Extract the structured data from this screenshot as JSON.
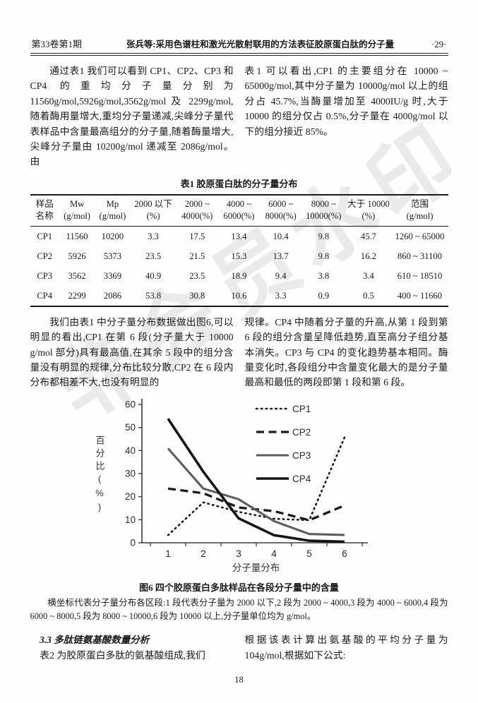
{
  "header": {
    "issue": "第33卷第1期",
    "running_title": "张兵等:采用色谱柱和激光光散射联用的方法表征胶原蛋白肽的分子量",
    "page_marker": "·29·"
  },
  "watermark": "非会员水印",
  "paragraphs": {
    "p1_left": "通过表1 我们可以看到 CP1、CP2、CP3 和 CP4 的重均分子量分别为 11560g/mol,5926g/mol,3562g/mol 及 2299g/mol,随着酶用量增大,重均分子量递减,尖峰分子量代表样品中含量最高组分的分子量,随着酶量增大,尖峰分子量由 10200g/mol 递减至 2086g/mol。由",
    "p1_right": "表1 可以看出,CP1 的主要组分在 10000 ~ 65000g/mol,其中分子量为 10000g/mol 以上的组分占 45.7%,当酶量增加至 4000IU/g 时,大于 10000 的组分仅占 0.5%,分子量在 4000g/mol 以下的组分接近 85%。",
    "p2_left": "我们由表1 中分子量分布数据做出图6,可以明显的看出,CP1 在第 6 段(分子量大于 10000 g/mol 部分)具有最高值,在其余 5 段中的组分含量没有明显的规律,分布比较分散,CP2 在 6 段内分布都相差不大,也没有明显的",
    "p2_right": "规律。CP4 中随着分子量的升高,从第 1 段到第 6 段的组分含量呈降低趋势,直至高分子组分基本消失。CP3 与 CP4 的变化趋势基本相同。酶量变化时,各段组分中含量变化最大的是分子量最高和最低的两段即第 1 段和第 6 段。"
  },
  "table": {
    "title": "表1  胶原蛋白肽的分子量分布",
    "columns": [
      {
        "l1": "样品",
        "l2": "名称"
      },
      {
        "l1": "Mw",
        "l2": "(g/mol)"
      },
      {
        "l1": "Mp",
        "l2": "(g/mol)"
      },
      {
        "l1": "2000 以下",
        "l2": "(%)"
      },
      {
        "l1": "2000 ~",
        "l2": "4000(%)"
      },
      {
        "l1": "4000 ~",
        "l2": "6000(%)"
      },
      {
        "l1": "6000 ~",
        "l2": "8000(%)"
      },
      {
        "l1": "8000 ~",
        "l2": "10000(%)"
      },
      {
        "l1": "大于 10000",
        "l2": "(%)"
      },
      {
        "l1": "范围",
        "l2": "(g/mol)"
      }
    ],
    "rows": [
      [
        "CP1",
        "11560",
        "10200",
        "3.3",
        "17.5",
        "13.4",
        "10.4",
        "9.8",
        "45.7",
        "1260 ~ 65000"
      ],
      [
        "CP2",
        "5926",
        "5373",
        "23.5",
        "21.5",
        "15.3",
        "13.7",
        "9.8",
        "16.2",
        "860 ~ 31100"
      ],
      [
        "CP3",
        "3562",
        "3369",
        "40.9",
        "23.5",
        "18.9",
        "9.4",
        "3.8",
        "3.4",
        "610 ~ 18510"
      ],
      [
        "CP4",
        "2299",
        "2086",
        "53.8",
        "30.8",
        "10.6",
        "3.3",
        "0.9",
        "0.5",
        "400 ~ 11660"
      ]
    ]
  },
  "chart_data": {
    "type": "line",
    "categories": [
      "1",
      "2",
      "3",
      "4",
      "5",
      "6"
    ],
    "series": [
      {
        "name": "CP1",
        "style": "dotted",
        "color": "#1c1c1c",
        "values": [
          3.3,
          17.5,
          13.4,
          10.4,
          9.8,
          45.7
        ]
      },
      {
        "name": "CP2",
        "style": "dashed",
        "color": "#1c1c1c",
        "values": [
          23.5,
          21.5,
          15.3,
          13.7,
          9.8,
          16.2
        ]
      },
      {
        "name": "CP3",
        "style": "solid-gray",
        "color": "#5c5c5c",
        "values": [
          40.9,
          23.5,
          18.9,
          9.4,
          3.8,
          3.4
        ]
      },
      {
        "name": "CP4",
        "style": "solid-black",
        "color": "#151515",
        "values": [
          53.8,
          30.8,
          10.6,
          3.3,
          0.9,
          0.5
        ]
      }
    ],
    "xlabel": "分子量分布",
    "ylabel": "百分比(%)",
    "ylim": [
      0,
      60
    ],
    "yticks": [
      0,
      10,
      20,
      30,
      40,
      50,
      60
    ],
    "legend_position": "top-right",
    "grid": false
  },
  "figure": {
    "caption": "图6  四个胶原蛋白多肽样品在各段分子量中的含量",
    "note": "横坐标代表分子量分布各区段:1 段代表分子量为 2000 以下,2 段为 2000 ~ 4000,3 段为 4000 ~ 6000,4 段为 6000 ~ 8000,5 段为 8000 ~ 10000,6 段为 10000 以上,分子量单位均为 g/mol。"
  },
  "section": {
    "heading": "3.3   多肽链氨基酸数量分析",
    "left_line": "表2 为胶原蛋白多肽的氨基酸组成,我们",
    "right_text": "根据该表计算出氨基酸的平均分子量为 104g/mol,根据如下公式:"
  },
  "footer": {
    "page_number": "18"
  }
}
